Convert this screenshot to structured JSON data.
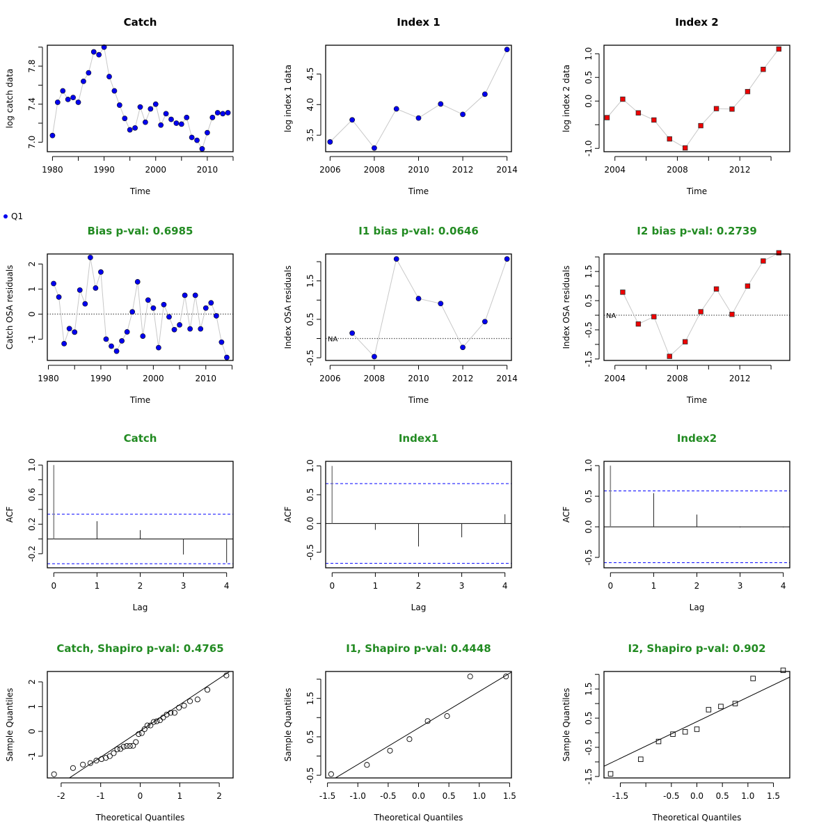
{
  "colors": {
    "title_black": "#000000",
    "title_green": "#228b22",
    "point_blue": "#0000ee",
    "point_red": "#ee0000",
    "line_grey": "#c8c8c8",
    "ci_blue": "#0000ff",
    "axis": "#000000"
  },
  "legend": {
    "label": "Q1",
    "symbol": "filled-circle",
    "color": "#0000ee"
  },
  "chart_data": [
    {
      "id": "catch-data",
      "type": "line",
      "title": "Catch",
      "title_color": "black",
      "xlabel": "Time",
      "ylabel": "log catch data",
      "xlim": [
        1979,
        2015
      ],
      "ylim": [
        6.9,
        8.02
      ],
      "xticks": [
        1980,
        1990,
        2000,
        2010
      ],
      "xtick_labels": [
        "1980",
        "1990",
        "2000",
        "2010"
      ],
      "xminor": [
        1985,
        1995,
        2005,
        2015
      ],
      "yticks": [
        7.0,
        7.2,
        7.4,
        7.6,
        7.8,
        8.0
      ],
      "ytick_labels": [
        "7.0",
        "",
        "7.4",
        "",
        "7.8",
        ""
      ],
      "marker": "circle",
      "marker_color": "blue",
      "x": [
        1980,
        1981,
        1982,
        1983,
        1984,
        1985,
        1986,
        1987,
        1988,
        1989,
        1990,
        1991,
        1992,
        1993,
        1994,
        1995,
        1996,
        1997,
        1998,
        1999,
        2000,
        2001,
        2002,
        2003,
        2004,
        2005,
        2006,
        2007,
        2008,
        2009,
        2010,
        2011,
        2012,
        2013,
        2014
      ],
      "y": [
        7.07,
        7.42,
        7.54,
        7.45,
        7.47,
        7.42,
        7.64,
        7.73,
        7.95,
        7.92,
        8.0,
        7.69,
        7.54,
        7.39,
        7.25,
        7.13,
        7.15,
        7.37,
        7.21,
        7.35,
        7.4,
        7.18,
        7.3,
        7.24,
        7.2,
        7.19,
        7.26,
        7.05,
        7.02,
        6.93,
        7.1,
        7.26,
        7.31,
        7.3,
        7.31
      ]
    },
    {
      "id": "index1-data",
      "type": "line",
      "title": "Index 1",
      "title_color": "black",
      "xlabel": "Time",
      "ylabel": "log index 1 data",
      "xlim": [
        2005.8,
        2014.2
      ],
      "ylim": [
        3.23,
        4.97
      ],
      "xticks": [
        2006,
        2008,
        2010,
        2012,
        2014
      ],
      "xtick_labels": [
        "2006",
        "2008",
        "2010",
        "2012",
        "2014"
      ],
      "xminor": [],
      "yticks": [
        3.5,
        4.0,
        4.5
      ],
      "ytick_labels": [
        "3.5",
        "4.0",
        "4.5"
      ],
      "marker": "circle",
      "marker_color": "blue",
      "x": [
        2006,
        2007,
        2008,
        2009,
        2010,
        2011,
        2012,
        2013,
        2014
      ],
      "y": [
        3.39,
        3.75,
        3.29,
        3.93,
        3.78,
        4.01,
        3.84,
        4.17,
        4.9
      ]
    },
    {
      "id": "index2-data",
      "type": "line",
      "title": "Index 2",
      "title_color": "black",
      "xlabel": "Time",
      "ylabel": "log index 2 data",
      "xlim": [
        2003.3,
        2015.2
      ],
      "ylim": [
        -1.07,
        1.18
      ],
      "xticks": [
        2004,
        2006,
        2008,
        2010,
        2012,
        2014
      ],
      "xtick_labels": [
        "2004",
        "",
        "2008",
        "",
        "2012",
        ""
      ],
      "xminor": [],
      "yticks": [
        -1.0,
        -0.5,
        0.0,
        0.5,
        1.0
      ],
      "ytick_labels": [
        "-1.0",
        "",
        "0.0",
        "0.5",
        "1.0"
      ],
      "marker": "square",
      "marker_color": "red",
      "x": [
        2003.5,
        2004.5,
        2005.5,
        2006.5,
        2007.5,
        2008.5,
        2009.5,
        2010.5,
        2011.5,
        2012.5,
        2013.5,
        2014.5
      ],
      "y": [
        -0.35,
        0.04,
        -0.25,
        -0.4,
        -0.8,
        -0.99,
        -0.52,
        -0.16,
        -0.17,
        0.2,
        0.67,
        1.1
      ]
    },
    {
      "id": "catch-resid",
      "type": "line",
      "title": "Bias p-val: 0.6985",
      "title_color": "green",
      "xlabel": "Time",
      "ylabel": "Catch OSA residuals",
      "xlim": [
        1979.8,
        2015.2
      ],
      "ylim": [
        -1.85,
        2.4
      ],
      "xticks": [
        1980,
        1990,
        2000,
        2010
      ],
      "xtick_labels": [
        "1980",
        "1990",
        "2000",
        "2010"
      ],
      "xminor": [
        1985,
        1995,
        2005,
        2015
      ],
      "yticks": [
        -1,
        0,
        1,
        2
      ],
      "ytick_labels": [
        "-1",
        "0",
        "1",
        "2"
      ],
      "hline": 0,
      "hline_label": "",
      "marker": "circle",
      "marker_color": "blue",
      "x": [
        1981,
        1982,
        1983,
        1984,
        1985,
        1986,
        1987,
        1988,
        1989,
        1990,
        1991,
        1992,
        1993,
        1994,
        1995,
        1996,
        1997,
        1998,
        1999,
        2000,
        2001,
        2002,
        2003,
        2004,
        2005,
        2006,
        2007,
        2008,
        2009,
        2010,
        2011,
        2012,
        2013,
        2014
      ],
      "y": [
        1.22,
        0.68,
        -1.18,
        -0.58,
        -0.72,
        0.96,
        0.41,
        2.26,
        1.04,
        1.68,
        -1.0,
        -1.28,
        -1.48,
        -1.07,
        -0.71,
        0.09,
        1.29,
        -0.88,
        0.56,
        0.24,
        -1.34,
        0.38,
        -0.11,
        -0.62,
        -0.43,
        0.75,
        -0.59,
        0.75,
        -0.59,
        0.24,
        0.45,
        -0.07,
        -1.12,
        -1.73
      ]
    },
    {
      "id": "index1-resid",
      "type": "line",
      "title": "I1 bias p-val: 0.0646",
      "title_color": "green",
      "xlabel": "Time",
      "ylabel": "Index OSA residuals",
      "xlim": [
        2005.8,
        2014.2
      ],
      "ylim": [
        -0.57,
        2.2
      ],
      "xticks": [
        2006,
        2008,
        2010,
        2012,
        2014
      ],
      "xtick_labels": [
        "2006",
        "2008",
        "2010",
        "2012",
        "2014"
      ],
      "xminor": [],
      "yticks": [
        -0.5,
        0.0,
        0.5,
        1.0,
        1.5,
        2.0
      ],
      "ytick_labels": [
        "-0.5",
        "",
        "0.5",
        "",
        "1.5",
        ""
      ],
      "hline": 0,
      "hline_label": "NA",
      "marker": "circle",
      "marker_color": "blue",
      "x": [
        2007,
        2008,
        2009,
        2010,
        2011,
        2012,
        2013,
        2014
      ],
      "y": [
        0.14,
        -0.47,
        2.07,
        1.04,
        0.91,
        -0.23,
        0.44,
        2.07
      ]
    },
    {
      "id": "index2-resid",
      "type": "line",
      "title": "I2 bias p-val: 0.2739",
      "title_color": "green",
      "xlabel": "Time",
      "ylabel": "Index OSA residuals",
      "xlim": [
        2003.3,
        2015.2
      ],
      "ylim": [
        -1.55,
        2.1
      ],
      "xticks": [
        2004,
        2006,
        2008,
        2010,
        2012,
        2014
      ],
      "xtick_labels": [
        "2004",
        "",
        "2008",
        "",
        "2012",
        ""
      ],
      "xminor": [],
      "yticks": [
        -1.5,
        -1.0,
        -0.5,
        0.0,
        0.5,
        1.0,
        1.5,
        2.0
      ],
      "ytick_labels": [
        "-1.5",
        "",
        "-0.5",
        "",
        "0.5",
        "",
        "1.5",
        ""
      ],
      "hline": 0,
      "hline_label": "NA",
      "marker": "square",
      "marker_color": "red",
      "x": [
        2004.5,
        2005.5,
        2006.5,
        2007.5,
        2008.5,
        2009.5,
        2010.5,
        2011.5,
        2012.5,
        2013.5,
        2014.5
      ],
      "y": [
        0.79,
        -0.3,
        -0.05,
        -1.41,
        -0.91,
        0.12,
        0.9,
        0.03,
        1.0,
        1.86,
        2.14
      ]
    },
    {
      "id": "catch-acf",
      "type": "bar",
      "subtype": "acf",
      "title": "Catch",
      "title_color": "green",
      "xlabel": "Lag",
      "ylabel": "ACF",
      "xlim": [
        -0.15,
        4.15
      ],
      "ylim": [
        -0.39,
        1.05
      ],
      "xticks": [
        0,
        1,
        2,
        3,
        4
      ],
      "xtick_labels": [
        "0",
        "1",
        "2",
        "3",
        "4"
      ],
      "yticks": [
        -0.2,
        0.0,
        0.2,
        0.4,
        0.6,
        0.8,
        1.0
      ],
      "ytick_labels": [
        "-0.2",
        "",
        "0.2",
        "",
        "0.6",
        "",
        "1.0"
      ],
      "lags": [
        0,
        1,
        2,
        3,
        4
      ],
      "values": [
        1.0,
        0.24,
        0.12,
        -0.21,
        -0.32
      ],
      "ci": 0.335
    },
    {
      "id": "index1-acf",
      "type": "bar",
      "subtype": "acf",
      "title": "Index1",
      "title_color": "green",
      "xlabel": "Lag",
      "ylabel": "ACF",
      "xlim": [
        -0.15,
        4.15
      ],
      "ylim": [
        -0.77,
        1.08
      ],
      "xticks": [
        0,
        1,
        2,
        3,
        4
      ],
      "xtick_labels": [
        "0",
        "1",
        "2",
        "3",
        "4"
      ],
      "yticks": [
        -0.5,
        0.0,
        0.5,
        1.0
      ],
      "ytick_labels": [
        "-0.5",
        "0.0",
        "0.5",
        "1.0"
      ],
      "lags": [
        0,
        1,
        2,
        3,
        4
      ],
      "values": [
        1.0,
        -0.11,
        -0.4,
        -0.24,
        0.16
      ],
      "ci": 0.693
    },
    {
      "id": "index2-acf",
      "type": "bar",
      "subtype": "acf",
      "title": "Index2",
      "title_color": "green",
      "xlabel": "Lag",
      "ylabel": "ACF",
      "xlim": [
        -0.15,
        4.15
      ],
      "ylim": [
        -0.67,
        1.07
      ],
      "xticks": [
        0,
        1,
        2,
        3,
        4
      ],
      "xtick_labels": [
        "0",
        "1",
        "2",
        "3",
        "4"
      ],
      "yticks": [
        -0.5,
        0.0,
        0.5,
        1.0
      ],
      "ytick_labels": [
        "-0.5",
        "0.0",
        "0.5",
        "1.0"
      ],
      "lags": [
        0,
        1,
        2,
        3,
        4
      ],
      "values": [
        1.0,
        0.55,
        0.2,
        -0.01,
        -0.01
      ],
      "ci": 0.586
    },
    {
      "id": "catch-qq",
      "type": "scatter",
      "subtype": "qq",
      "title": "Catch, Shapiro p-val: 0.4765",
      "title_color": "green",
      "xlabel": "Theoretical Quantiles",
      "ylabel": "Sample Quantiles",
      "xlim": [
        -2.35,
        2.35
      ],
      "ylim": [
        -1.88,
        2.42
      ],
      "xticks": [
        -2,
        -1,
        0,
        1,
        2
      ],
      "xtick_labels": [
        "-2",
        "-1",
        "0",
        "1",
        "2"
      ],
      "yticks": [
        -1,
        0,
        1,
        2
      ],
      "ytick_labels": [
        "-1",
        "0",
        "1",
        "2"
      ],
      "marker": "open-circle",
      "qqline": {
        "intercept": 0.02,
        "slope": 1.06
      },
      "x": [
        -2.18,
        -1.7,
        -1.45,
        -1.26,
        -1.11,
        -0.98,
        -0.87,
        -0.77,
        -0.67,
        -0.58,
        -0.5,
        -0.42,
        -0.34,
        -0.26,
        -0.18,
        -0.11,
        -0.04,
        0.04,
        0.11,
        0.18,
        0.26,
        0.34,
        0.42,
        0.5,
        0.58,
        0.67,
        0.77,
        0.87,
        0.98,
        1.11,
        1.26,
        1.45,
        1.7,
        2.18
      ],
      "y": [
        -1.73,
        -1.48,
        -1.34,
        -1.28,
        -1.18,
        -1.12,
        -1.07,
        -1.0,
        -0.88,
        -0.72,
        -0.71,
        -0.62,
        -0.59,
        -0.59,
        -0.58,
        -0.43,
        -0.11,
        -0.07,
        0.09,
        0.24,
        0.24,
        0.38,
        0.41,
        0.45,
        0.56,
        0.68,
        0.75,
        0.75,
        0.96,
        1.04,
        1.22,
        1.29,
        1.68,
        2.26
      ]
    },
    {
      "id": "index1-qq",
      "type": "scatter",
      "subtype": "qq",
      "title": "I1, Shapiro p-val: 0.4448",
      "title_color": "green",
      "xlabel": "Theoretical Quantiles",
      "ylabel": "Sample Quantiles",
      "xlim": [
        -1.53,
        1.53
      ],
      "ylim": [
        -0.57,
        2.2
      ],
      "xticks": [
        -1.5,
        -1.0,
        -0.5,
        0.0,
        0.5,
        1.0,
        1.5
      ],
      "xtick_labels": [
        "-1.5",
        "-1.0",
        "-0.5",
        "0.0",
        "0.5",
        "1.0",
        "1.5"
      ],
      "yticks": [
        -0.5,
        0.0,
        0.5,
        1.0,
        1.5,
        2.0
      ],
      "ytick_labels": [
        "-0.5",
        "",
        "0.5",
        "",
        "1.5",
        ""
      ],
      "marker": "open-circle",
      "qqline": {
        "intercept": 0.73,
        "slope": 0.95
      },
      "x": [
        -1.44,
        -0.85,
        -0.47,
        -0.15,
        0.15,
        0.47,
        0.85,
        1.44
      ],
      "y": [
        -0.47,
        -0.23,
        0.14,
        0.44,
        0.91,
        1.04,
        2.07,
        2.07
      ]
    },
    {
      "id": "index2-qq",
      "type": "scatter",
      "subtype": "qq",
      "title": "I2, Shapiro p-val: 0.902",
      "title_color": "green",
      "xlabel": "Theoretical Quantiles",
      "ylabel": "Sample Quantiles",
      "xlim": [
        -1.82,
        1.82
      ],
      "ylim": [
        -1.55,
        2.1
      ],
      "xticks": [
        -1.5,
        -1.0,
        -0.5,
        0.0,
        0.5,
        1.0,
        1.5
      ],
      "xtick_labels": [
        "-1.5",
        "",
        "-0.5",
        "0.0",
        "0.5",
        "1.0",
        "1.5"
      ],
      "yticks": [
        -1.5,
        -1.0,
        -0.5,
        0.0,
        0.5,
        1.0,
        1.5,
        2.0
      ],
      "ytick_labels": [
        "-1.5",
        "",
        "-0.5",
        "",
        "0.5",
        "",
        "1.5",
        ""
      ],
      "marker": "open-square",
      "qqline": {
        "intercept": 0.38,
        "slope": 0.84
      },
      "x": [
        -1.69,
        -1.1,
        -0.75,
        -0.47,
        -0.23,
        0.0,
        0.23,
        0.47,
        0.75,
        1.1,
        1.69
      ],
      "y": [
        -1.41,
        -0.91,
        -0.3,
        -0.05,
        0.03,
        0.12,
        0.79,
        0.9,
        1.0,
        1.86,
        2.14
      ]
    }
  ]
}
